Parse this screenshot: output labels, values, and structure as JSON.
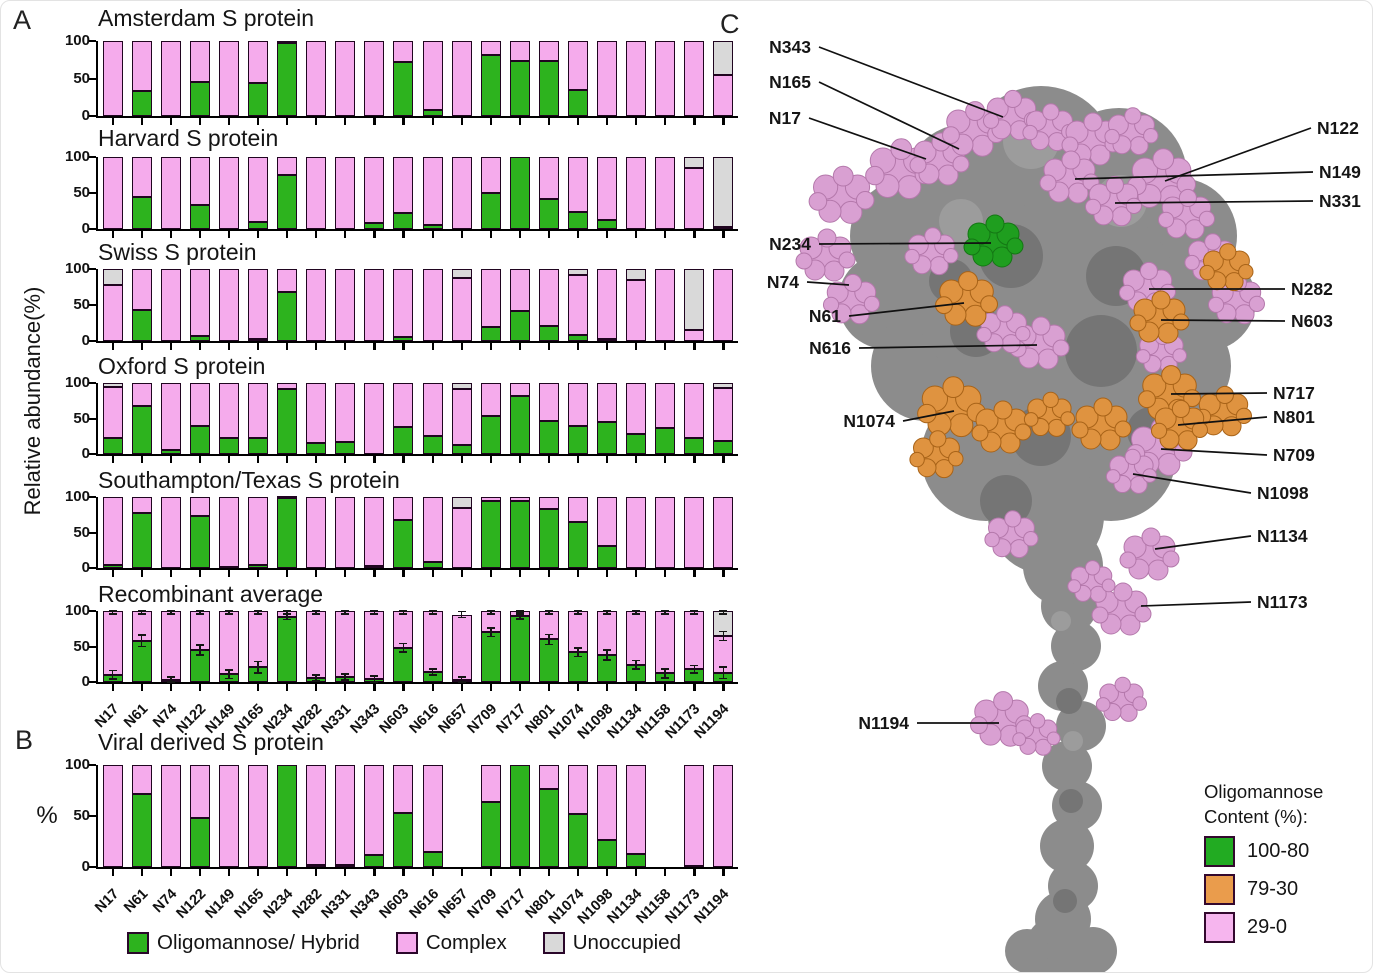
{
  "panels": {
    "a": "A",
    "b": "B",
    "c": "C"
  },
  "y_axis_label": "Relative abundance(%)",
  "viral_y_label": "%",
  "sites": [
    "N17",
    "N61",
    "N74",
    "N122",
    "N149",
    "N165",
    "N234",
    "N282",
    "N331",
    "N343",
    "N603",
    "N616",
    "N657",
    "N709",
    "N717",
    "N801",
    "N1074",
    "N1098",
    "N1134",
    "N1158",
    "N1173",
    "N1194"
  ],
  "colors": {
    "bar-green": "#2db31e",
    "bar-pink": "#f5abec",
    "bar-gray": "#d9d9d9",
    "bar-outline": "#200520",
    "structure-gray": "#8c8c8c",
    "structure-gray-dark": "#757575",
    "structure-gray-light": "#9c9c9c",
    "structure-pink": "#d9a0d2",
    "structure-orange": "#df9340",
    "structure-green": "#1f9e1f",
    "legend-green": "#22ab22",
    "legend-orange": "#ea9c4c",
    "legend-pink": "#f6b5ee"
  },
  "legend": {
    "items": [
      {
        "label": "Oligomannose/ Hybrid",
        "color_key": "bar-green"
      },
      {
        "label": "Complex",
        "color_key": "bar-pink"
      },
      {
        "label": "Unoccupied",
        "color_key": "bar-gray"
      }
    ]
  },
  "chart_data": [
    {
      "type": "bar",
      "stacked": true,
      "panel": "A",
      "title": "Amsterdam S protein",
      "ylim": [
        0,
        100
      ],
      "yticks": [
        100,
        50,
        0
      ],
      "series": [
        {
          "name": "Oligomannose/ Hybrid",
          "values": [
            0,
            33,
            0,
            46,
            0,
            44,
            97,
            0,
            0,
            0,
            72,
            8,
            0,
            82,
            74,
            74,
            35,
            0,
            0,
            0,
            0,
            0
          ]
        },
        {
          "name": "Complex",
          "values": [
            100,
            67,
            100,
            54,
            100,
            56,
            3,
            100,
            100,
            100,
            28,
            92,
            100,
            18,
            26,
            26,
            65,
            100,
            100,
            100,
            100,
            55
          ]
        },
        {
          "name": "Unoccupied",
          "values": [
            0,
            0,
            0,
            0,
            0,
            0,
            0,
            0,
            0,
            0,
            0,
            0,
            0,
            0,
            0,
            0,
            0,
            0,
            0,
            0,
            0,
            45
          ]
        }
      ]
    },
    {
      "type": "bar",
      "stacked": true,
      "panel": "A",
      "title": "Harvard S protein",
      "ylim": [
        0,
        100
      ],
      "yticks": [
        100,
        50,
        0
      ],
      "series": [
        {
          "name": "Oligomannose/ Hybrid",
          "values": [
            0,
            45,
            0,
            33,
            0,
            10,
            75,
            0,
            0,
            8,
            22,
            6,
            0,
            50,
            100,
            42,
            23,
            13,
            0,
            0,
            0,
            0
          ]
        },
        {
          "name": "Complex",
          "values": [
            100,
            55,
            100,
            67,
            100,
            90,
            25,
            100,
            100,
            92,
            78,
            94,
            100,
            50,
            0,
            58,
            77,
            87,
            100,
            100,
            85,
            3
          ]
        },
        {
          "name": "Unoccupied",
          "values": [
            0,
            0,
            0,
            0,
            0,
            0,
            0,
            0,
            0,
            0,
            0,
            0,
            0,
            0,
            0,
            0,
            0,
            0,
            0,
            0,
            15,
            97
          ]
        }
      ]
    },
    {
      "type": "bar",
      "stacked": true,
      "panel": "A",
      "title": "Swiss S protein",
      "ylim": [
        0,
        100
      ],
      "yticks": [
        100,
        50,
        0
      ],
      "series": [
        {
          "name": "Oligomannose/ Hybrid",
          "values": [
            0,
            43,
            0,
            7,
            0,
            3,
            68,
            0,
            0,
            0,
            5,
            0,
            0,
            20,
            42,
            21,
            9,
            3,
            0,
            0,
            0,
            0
          ]
        },
        {
          "name": "Complex",
          "values": [
            78,
            57,
            100,
            93,
            100,
            97,
            32,
            100,
            100,
            100,
            95,
            100,
            87,
            80,
            58,
            79,
            83,
            97,
            85,
            100,
            15,
            100
          ]
        },
        {
          "name": "Unoccupied",
          "values": [
            22,
            0,
            0,
            0,
            0,
            0,
            0,
            0,
            0,
            0,
            0,
            0,
            13,
            0,
            0,
            0,
            8,
            0,
            15,
            0,
            85,
            0
          ]
        }
      ]
    },
    {
      "type": "bar",
      "stacked": true,
      "panel": "A",
      "title": "Oxford S protein",
      "ylim": [
        0,
        100
      ],
      "yticks": [
        100,
        50,
        0
      ],
      "series": [
        {
          "name": "Oligomannose/ Hybrid",
          "values": [
            22,
            68,
            6,
            39,
            23,
            23,
            91,
            15,
            17,
            0,
            38,
            25,
            13,
            54,
            82,
            47,
            39,
            45,
            28,
            36,
            22,
            18
          ]
        },
        {
          "name": "Complex",
          "values": [
            73,
            32,
            94,
            61,
            77,
            77,
            9,
            85,
            83,
            100,
            62,
            75,
            79,
            46,
            18,
            53,
            61,
            55,
            72,
            64,
            78,
            75
          ]
        },
        {
          "name": "Unoccupied",
          "values": [
            5,
            0,
            0,
            0,
            0,
            0,
            0,
            0,
            0,
            0,
            0,
            0,
            8,
            0,
            0,
            0,
            0,
            0,
            0,
            0,
            0,
            7
          ]
        }
      ]
    },
    {
      "type": "bar",
      "stacked": true,
      "panel": "A",
      "title": "Southampton/Texas S protein",
      "ylim": [
        0,
        100
      ],
      "yticks": [
        100,
        50,
        0
      ],
      "series": [
        {
          "name": "Oligomannose/ Hybrid",
          "values": [
            4,
            78,
            0,
            73,
            2,
            4,
            98,
            0,
            0,
            3,
            67,
            9,
            0,
            94,
            95,
            83,
            65,
            31,
            0,
            0,
            0,
            0
          ]
        },
        {
          "name": "Complex",
          "values": [
            96,
            22,
            100,
            27,
            98,
            96,
            2,
            100,
            100,
            97,
            33,
            91,
            85,
            6,
            5,
            17,
            35,
            69,
            100,
            100,
            100,
            100
          ]
        },
        {
          "name": "Unoccupied",
          "values": [
            0,
            0,
            0,
            0,
            0,
            0,
            0,
            0,
            0,
            0,
            0,
            0,
            15,
            0,
            0,
            0,
            0,
            0,
            0,
            0,
            0,
            0
          ]
        }
      ]
    },
    {
      "type": "bar",
      "stacked": true,
      "panel": "A",
      "title": "Recombinant average",
      "ylim": [
        0,
        100
      ],
      "yticks": [
        100,
        50,
        0
      ],
      "errors": [
        6,
        8,
        2,
        7,
        6,
        8,
        3,
        2,
        3,
        2,
        6,
        4,
        4,
        6,
        4,
        7,
        6,
        7,
        6,
        6,
        5,
        8
      ],
      "series": [
        {
          "name": "Oligomannose/ Hybrid",
          "values": [
            10,
            58,
            3,
            45,
            11,
            21,
            92,
            6,
            7,
            4,
            48,
            14,
            3,
            70,
            93,
            60,
            42,
            38,
            24,
            12,
            18,
            13
          ]
        },
        {
          "name": "Complex",
          "values": [
            90,
            42,
            97,
            55,
            89,
            79,
            8,
            94,
            93,
            96,
            52,
            86,
            92,
            30,
            7,
            40,
            58,
            62,
            76,
            88,
            82,
            52
          ]
        },
        {
          "name": "Unoccupied",
          "values": [
            0,
            0,
            0,
            0,
            0,
            0,
            0,
            0,
            0,
            0,
            0,
            0,
            0,
            0,
            0,
            0,
            0,
            0,
            0,
            0,
            0,
            35
          ]
        }
      ]
    },
    {
      "type": "bar",
      "stacked": true,
      "panel": "B",
      "title": "Viral derived S protein",
      "ylim": [
        0,
        100
      ],
      "yticks": [
        100,
        50,
        0
      ],
      "series": [
        {
          "name": "Oligomannose/ Hybrid",
          "values": [
            0,
            72,
            0,
            48,
            0,
            0,
            100,
            2,
            2,
            12,
            53,
            15,
            null,
            64,
            100,
            76,
            52,
            26,
            13,
            null,
            1,
            0
          ]
        },
        {
          "name": "Complex",
          "values": [
            100,
            28,
            100,
            52,
            100,
            100,
            0,
            98,
            98,
            88,
            47,
            85,
            null,
            36,
            0,
            24,
            48,
            74,
            87,
            null,
            99,
            100
          ]
        },
        {
          "name": "Unoccupied",
          "values": [
            0,
            0,
            0,
            0,
            0,
            0,
            0,
            0,
            0,
            0,
            0,
            0,
            null,
            0,
            0,
            0,
            0,
            0,
            0,
            null,
            0,
            0
          ]
        }
      ]
    }
  ],
  "structure": {
    "labels": [
      "N343",
      "N165",
      "N17",
      "N234",
      "N74",
      "N61",
      "N616",
      "N1074",
      "N1194",
      "N122",
      "N149",
      "N331",
      "N282",
      "N603",
      "N717",
      "N801",
      "N709",
      "N1098",
      "N1134",
      "N1173"
    ],
    "legend": {
      "title_line1": "Oligomannose",
      "title_line2": "Content (%):",
      "entries": [
        {
          "range": "100-80",
          "color_key": "legend-green"
        },
        {
          "range": "79-30",
          "color_key": "legend-orange"
        },
        {
          "range": "29-0",
          "color_key": "legend-pink"
        }
      ]
    }
  }
}
